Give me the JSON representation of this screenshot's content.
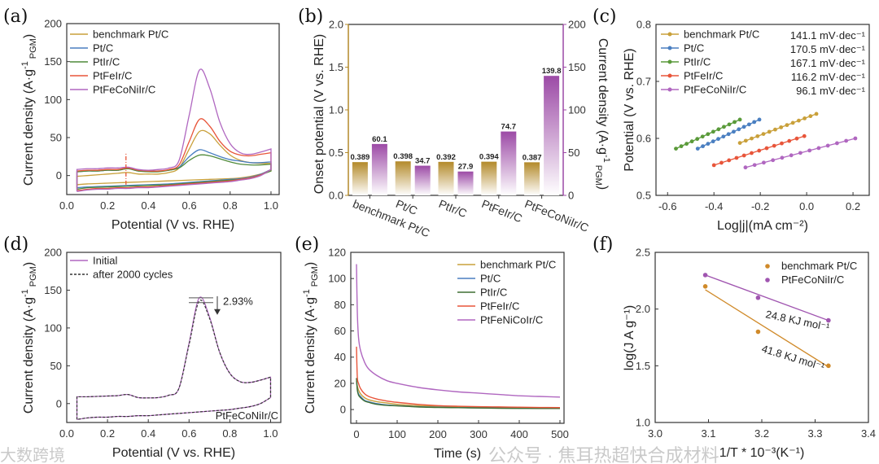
{
  "figure": {
    "panel_labels": [
      "(a)",
      "(b)",
      "(c)",
      "(d)",
      "(e)",
      "(f)"
    ],
    "watermarks": [
      "公众号 · 焦耳热超快合成材料",
      "大数跨境"
    ]
  },
  "chart_data": [
    {
      "id": "a",
      "type": "line",
      "xlabel": "Potential (V vs. RHE)",
      "ylabel": {
        "main": "Current density (A·g",
        "sup": "-1",
        "sub": "PGM",
        "end": ")"
      },
      "xlim": [
        0,
        1.04
      ],
      "ylim": [
        -25,
        200
      ],
      "xticks": [
        "0.0",
        "0.2",
        "0.4",
        "0.6",
        "0.8",
        "1.0"
      ],
      "yticks": [
        "0",
        "50",
        "100",
        "150",
        "200"
      ],
      "legend": "top-left",
      "x": [
        0.05,
        0.1,
        0.15,
        0.2,
        0.25,
        0.3,
        0.35,
        0.4,
        0.45,
        0.5,
        0.55,
        0.6,
        0.65,
        0.7,
        0.75,
        0.8,
        0.85,
        0.9,
        0.95,
        1.0
      ],
      "marker_line": {
        "x": 0.29,
        "y": [
          -12,
          30
        ],
        "color": "#e8553a"
      },
      "series": [
        {
          "name": "benchmark Pt/C",
          "color": "#c9a03a",
          "forward": [
            -1,
            0,
            1,
            2,
            3,
            4,
            2,
            2,
            2,
            4,
            10,
            35,
            58,
            55,
            40,
            27,
            20,
            17,
            16,
            16
          ],
          "reverse": [
            -12,
            -11,
            -10.5,
            -10,
            -9.5,
            -9,
            -8.5,
            -8,
            -7.5,
            -7,
            -6.5,
            -6,
            -5.5,
            -5,
            -4.5,
            -4,
            -3,
            -1,
            2,
            6
          ]
        },
        {
          "name": "Pt/C",
          "color": "#4a7fc1",
          "forward": [
            5,
            6,
            6,
            7,
            7,
            9,
            6,
            6,
            6,
            7,
            11,
            25,
            34,
            30,
            25,
            21,
            19,
            17,
            17,
            18
          ],
          "reverse": [
            -16,
            -15,
            -14.5,
            -14,
            -13.5,
            -13,
            -12.5,
            -12,
            -11.5,
            -11,
            -10,
            -9,
            -8,
            -7,
            -6,
            -5,
            -4,
            -2,
            2,
            8
          ]
        },
        {
          "name": "PtIr/C",
          "color": "#4f8a3a",
          "forward": [
            5,
            6,
            6,
            7,
            7,
            9,
            6,
            5,
            5,
            7,
            10,
            20,
            27,
            26,
            22,
            18,
            15,
            14,
            14,
            15
          ],
          "reverse": [
            -18,
            -16,
            -15.5,
            -15,
            -14.5,
            -14,
            -13.5,
            -13,
            -12.5,
            -12,
            -11,
            -10,
            -9,
            -8,
            -7,
            -6,
            -5,
            -3,
            1,
            6
          ]
        },
        {
          "name": "PtFeIr/C",
          "color": "#e8553a",
          "forward": [
            6,
            7,
            7,
            8,
            8,
            10,
            7,
            6,
            6,
            8,
            14,
            45,
            74,
            65,
            45,
            32,
            27,
            26,
            28,
            30
          ],
          "reverse": [
            -20,
            -18,
            -17,
            -17,
            -16,
            -16,
            -15,
            -15,
            -14,
            -13,
            -12,
            -11,
            -10,
            -9,
            -8,
            -7,
            -5,
            -3,
            1,
            8
          ]
        },
        {
          "name": "PtFeCoNiIr/C",
          "color": "#b067c0",
          "forward": [
            8,
            9,
            9,
            10,
            10,
            11,
            8,
            7,
            8,
            10,
            20,
            80,
            139,
            115,
            70,
            42,
            30,
            28,
            31,
            35
          ],
          "reverse": [
            -21,
            -19,
            -18,
            -18,
            -17,
            -17,
            -16,
            -16,
            -15,
            -14,
            -13,
            -12,
            -11,
            -10,
            -9,
            -8,
            -6,
            -4,
            0,
            8
          ]
        }
      ]
    },
    {
      "id": "b",
      "type": "bar",
      "categories": [
        "benchmark Pt/C",
        "Pt/C",
        "PtIr/C",
        "PtFeIr/C",
        "PtFeCoNiIr/C"
      ],
      "ylabel_left": "Onset potential (V vs. RHE)",
      "ylabel_right": {
        "main": "Current density (A·g",
        "sup": "-1",
        "sub": "PGM",
        "end": ")"
      },
      "ylim_left": [
        0,
        2
      ],
      "ylim_right": [
        0,
        200
      ],
      "yticks_left": [
        "0.0",
        "0.5",
        "1.0",
        "1.5",
        "2.0"
      ],
      "yticks_right": [
        "0",
        "50",
        "100",
        "150",
        "200"
      ],
      "series": [
        {
          "name": "Onset potential",
          "axis": "left",
          "color": "#b38a2a",
          "values": [
            0.389,
            0.398,
            0.392,
            0.394,
            0.387
          ],
          "labels": [
            "0.389",
            "0.398",
            "0.392",
            "0.394",
            "0.387"
          ]
        },
        {
          "name": "Current density",
          "axis": "right",
          "color": "#9c4aa6",
          "values": [
            60.1,
            34.7,
            27.9,
            74.7,
            139.8
          ],
          "labels": [
            "60.1",
            "34.7",
            "27.9",
            "74.7",
            "139.8"
          ]
        }
      ]
    },
    {
      "id": "c",
      "type": "scatter",
      "xlabel": "Log|j|(mA cm⁻²)",
      "ylabel": "Potential (V vs. RHE)",
      "xlim": [
        -0.65,
        0.27
      ],
      "ylim": [
        0.5,
        0.8
      ],
      "xticks": [
        "-0.6",
        "-0.4",
        "-0.2",
        "0.0",
        "0.2"
      ],
      "yticks": [
        "0.5",
        "0.6",
        "0.7",
        "0.8"
      ],
      "legend": "top-left",
      "series": [
        {
          "name": "benchmark Pt/C",
          "color": "#c9a03a",
          "x_range": [
            -0.288,
            0.042
          ],
          "y_range": [
            0.592,
            0.643
          ],
          "n_points": 14,
          "slope": "141.1 mV·dec⁻¹"
        },
        {
          "name": "Pt/C",
          "color": "#4a7fc1",
          "x_range": [
            -0.47,
            -0.204
          ],
          "y_range": [
            0.582,
            0.633
          ],
          "n_points": 13,
          "slope": "170.5 mV·dec⁻¹"
        },
        {
          "name": "PtIr/C",
          "color": "#5a9a3a",
          "x_range": [
            -0.564,
            -0.288
          ],
          "y_range": [
            0.582,
            0.633
          ],
          "n_points": 13,
          "slope": "167.1 mV·dec⁻¹"
        },
        {
          "name": "PtFeIr/C",
          "color": "#e8553a",
          "x_range": [
            -0.4,
            -0.01
          ],
          "y_range": [
            0.553,
            0.604
          ],
          "n_points": 13,
          "slope": "116.2 mV·dec⁻¹"
        },
        {
          "name": "PtFeCoNiIr/C",
          "color": "#b067c0",
          "x_range": [
            -0.264,
            0.21
          ],
          "y_range": [
            0.549,
            0.6
          ],
          "n_points": 13,
          "slope": "96.1 mV·dec⁻¹"
        }
      ]
    },
    {
      "id": "d",
      "type": "line",
      "xlabel": "Potential (V vs. RHE)",
      "ylabel": {
        "main": "Current density (A·g",
        "sup": "-1",
        "sub": "PGM",
        "end": ")"
      },
      "xlim": [
        0,
        1.05
      ],
      "ylim": [
        -25,
        200
      ],
      "xticks": [
        "0.0",
        "0.2",
        "0.4",
        "0.6",
        "0.8",
        "1.0"
      ],
      "yticks": [
        "0",
        "50",
        "100",
        "150",
        "200"
      ],
      "legend": "top-left",
      "sample_label": "PtFeCoNiIr/C",
      "decay_label": "2.93%",
      "x": [
        0.05,
        0.1,
        0.15,
        0.2,
        0.25,
        0.3,
        0.35,
        0.4,
        0.45,
        0.5,
        0.55,
        0.6,
        0.65,
        0.7,
        0.75,
        0.8,
        0.85,
        0.9,
        0.95,
        1.0
      ],
      "series": [
        {
          "name": "Initial",
          "color": "#b067c0",
          "style": "solid",
          "forward": [
            9,
            9,
            9.5,
            10,
            10.5,
            12,
            8,
            7.5,
            8,
            11,
            20,
            80,
            139.8,
            115,
            68,
            40,
            29,
            28,
            31,
            35
          ],
          "reverse": [
            -21,
            -19,
            -18,
            -18,
            -17,
            -17,
            -16,
            -16,
            -15,
            -14,
            -13,
            -12,
            -11,
            -10,
            -9,
            -8,
            -6,
            -4,
            0,
            8
          ]
        },
        {
          "name": "after 2000 cycles",
          "color": "#333333",
          "style": "dashed",
          "forward": [
            9,
            9,
            9.5,
            10,
            10.5,
            12,
            8,
            7.5,
            8,
            11,
            20,
            78,
            135.7,
            113,
            68,
            40,
            29,
            28,
            31,
            35
          ],
          "reverse": [
            -21,
            -19,
            -18,
            -18,
            -17,
            -17,
            -16,
            -16,
            -15,
            -14,
            -13,
            -12,
            -11,
            -10,
            -9,
            -8,
            -6,
            -4,
            0,
            8
          ]
        }
      ]
    },
    {
      "id": "e",
      "type": "line",
      "xlabel": "Time (s)",
      "ylabel": {
        "main": "Current density (A·g",
        "sup": "-1",
        "sub": "PGM",
        "end": ")"
      },
      "xlim": [
        -14,
        510
      ],
      "ylim": [
        -10.5,
        120
      ],
      "xticks": [
        "0",
        "100",
        "200",
        "300",
        "400",
        "500"
      ],
      "yticks": [
        "0",
        "20",
        "40",
        "60",
        "80",
        "100",
        "120"
      ],
      "legend": "top-right",
      "x": [
        0,
        2,
        5,
        10,
        20,
        30,
        50,
        75,
        100,
        150,
        200,
        250,
        300,
        350,
        400,
        450,
        500
      ],
      "series": [
        {
          "name": "benchmark Pt/C",
          "color": "#c9a03a",
          "values": [
            22,
            18,
            15,
            12,
            9,
            7.5,
            6,
            5,
            4,
            3,
            2.5,
            2,
            1.6,
            1.4,
            1.2,
            1,
            0.8
          ]
        },
        {
          "name": "Pt/C",
          "color": "#4a7fc1",
          "values": [
            24,
            16,
            12,
            10,
            7,
            6,
            4.5,
            3.5,
            3,
            2.2,
            1.8,
            1.5,
            1.3,
            1.1,
            1,
            0.9,
            0.8
          ]
        },
        {
          "name": "PtIr/C",
          "color": "#3f6e33",
          "values": [
            24,
            15,
            11,
            9,
            6.5,
            5.5,
            4,
            3.2,
            2.8,
            2,
            1.6,
            1.4,
            1.2,
            1,
            0.9,
            0.8,
            0.8
          ]
        },
        {
          "name": "PtFeIr/C",
          "color": "#e8553a",
          "values": [
            48,
            25,
            20,
            16,
            12,
            10,
            8,
            6.5,
            5.5,
            4,
            3,
            2.5,
            2.2,
            2,
            1.8,
            1.6,
            1.5
          ]
        },
        {
          "name": "PtFeNiCoIr/C",
          "color": "#b067c0",
          "values": [
            111,
            75,
            55,
            45,
            36,
            31,
            26,
            22,
            20,
            17,
            15,
            13.5,
            12.5,
            11.5,
            10.5,
            10,
            9.5
          ]
        }
      ]
    },
    {
      "id": "f",
      "type": "scatter",
      "xlabel": "1/T * 10⁻³(K⁻¹)",
      "ylabel": "log(J A g⁻¹)",
      "xlim": [
        3.0,
        3.4
      ],
      "ylim": [
        1.0,
        2.5
      ],
      "xticks": [
        "3.0",
        "3.1",
        "3.2",
        "3.3",
        "3.4"
      ],
      "yticks": [
        "1.0",
        "1.5",
        "2.0",
        "2.5"
      ],
      "legend": "top-right",
      "series": [
        {
          "name": "benchmark Pt/C",
          "color": "#d08a2a",
          "x": [
            3.094,
            3.193,
            3.325
          ],
          "y": [
            2.2,
            1.8,
            1.5
          ],
          "fit": {
            "x": [
              3.094,
              3.325
            ],
            "y": [
              2.17,
              1.49
            ]
          },
          "energy": "41.8 KJ mol⁻¹"
        },
        {
          "name": "PtFeCoNiIr/C",
          "color": "#a055b0",
          "x": [
            3.094,
            3.193,
            3.325
          ],
          "y": [
            2.3,
            2.1,
            1.9
          ],
          "fit": {
            "x": [
              3.094,
              3.325
            ],
            "y": [
              2.3,
              1.9
            ]
          },
          "energy": "24.8 KJ mol⁻¹"
        }
      ]
    }
  ]
}
